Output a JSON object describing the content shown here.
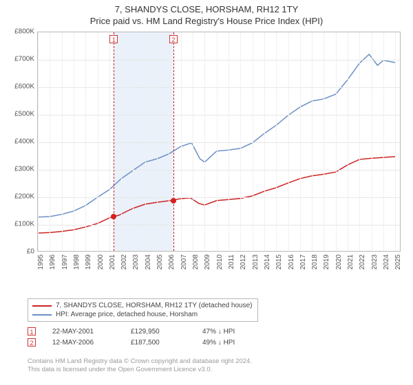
{
  "title_line1": "7, SHANDYS CLOSE, HORSHAM, RH12 1TY",
  "title_line2": "Price paid vs. HM Land Registry's House Price Index (HPI)",
  "chart": {
    "type": "line",
    "background_color": "#ffffff",
    "grid_color": "#e6e6e6",
    "axis_color": "#b8b8b8",
    "shade_color": "#eaf1fa",
    "x_label_fontsize": 10,
    "y_label_fontsize": 10,
    "ylim": [
      0,
      800000
    ],
    "ytick_step": 100000,
    "y_ticks": [
      "£0",
      "£100K",
      "£200K",
      "£300K",
      "£400K",
      "£500K",
      "£600K",
      "£700K",
      "£800K"
    ],
    "xlim": [
      1995,
      2025.5
    ],
    "x_ticks": [
      1995,
      1996,
      1997,
      1998,
      1999,
      2000,
      2001,
      2002,
      2003,
      2004,
      2005,
      2006,
      2007,
      2008,
      2009,
      2010,
      2011,
      2012,
      2013,
      2014,
      2015,
      2016,
      2017,
      2018,
      2019,
      2020,
      2021,
      2022,
      2023,
      2024,
      2025
    ],
    "series": [
      {
        "name": "7, SHANDYS CLOSE, HORSHAM, RH12 1TY (detached house)",
        "color": "#cc2222",
        "line_width": 1.5,
        "data": [
          [
            1995,
            70000
          ],
          [
            1996,
            72000
          ],
          [
            1997,
            76000
          ],
          [
            1998,
            82000
          ],
          [
            1999,
            92000
          ],
          [
            2000,
            105000
          ],
          [
            2001,
            125000
          ],
          [
            2001.8,
            135000
          ],
          [
            2002.5,
            150000
          ],
          [
            2003,
            160000
          ],
          [
            2004,
            175000
          ],
          [
            2005,
            182000
          ],
          [
            2006,
            187500
          ],
          [
            2007,
            195000
          ],
          [
            2007.8,
            198000
          ],
          [
            2008.5,
            178000
          ],
          [
            2009,
            172000
          ],
          [
            2010,
            188000
          ],
          [
            2011,
            192000
          ],
          [
            2012,
            196000
          ],
          [
            2013,
            205000
          ],
          [
            2014,
            222000
          ],
          [
            2015,
            235000
          ],
          [
            2016,
            252000
          ],
          [
            2017,
            268000
          ],
          [
            2018,
            278000
          ],
          [
            2019,
            284000
          ],
          [
            2020,
            292000
          ],
          [
            2021,
            318000
          ],
          [
            2022,
            338000
          ],
          [
            2023,
            342000
          ],
          [
            2024,
            345000
          ],
          [
            2025,
            348000
          ]
        ]
      },
      {
        "name": "HPI: Average price, detached house, Horsham",
        "color": "#6a8fc5",
        "line_width": 1.5,
        "data": [
          [
            1995,
            128000
          ],
          [
            1996,
            130000
          ],
          [
            1997,
            138000
          ],
          [
            1998,
            150000
          ],
          [
            1999,
            170000
          ],
          [
            2000,
            200000
          ],
          [
            2001,
            228000
          ],
          [
            2002,
            268000
          ],
          [
            2003,
            298000
          ],
          [
            2004,
            328000
          ],
          [
            2005,
            340000
          ],
          [
            2006,
            358000
          ],
          [
            2007,
            385000
          ],
          [
            2007.9,
            398000
          ],
          [
            2008.6,
            340000
          ],
          [
            2009,
            328000
          ],
          [
            2010,
            368000
          ],
          [
            2011,
            372000
          ],
          [
            2012,
            378000
          ],
          [
            2013,
            398000
          ],
          [
            2014,
            432000
          ],
          [
            2015,
            462000
          ],
          [
            2016,
            498000
          ],
          [
            2017,
            528000
          ],
          [
            2018,
            550000
          ],
          [
            2019,
            558000
          ],
          [
            2020,
            575000
          ],
          [
            2021,
            628000
          ],
          [
            2022,
            688000
          ],
          [
            2022.8,
            720000
          ],
          [
            2023.5,
            680000
          ],
          [
            2024,
            698000
          ],
          [
            2025,
            690000
          ]
        ]
      }
    ],
    "shade_ranges": [
      {
        "from": 2001.38,
        "to": 2006.37
      }
    ],
    "sale_markers": [
      {
        "idx": "1",
        "x": 2001.38,
        "y": 129950,
        "dash_color": "#cc2222"
      },
      {
        "idx": "2",
        "x": 2006.37,
        "y": 187500,
        "dash_color": "#cc2222"
      }
    ]
  },
  "legend": {
    "items": [
      {
        "label": "7, SHANDYS CLOSE, HORSHAM, RH12 1TY (detached house)",
        "color": "#cc2222"
      },
      {
        "label": "HPI: Average price, detached house, Horsham",
        "color": "#6a8fc5"
      }
    ]
  },
  "sales": [
    {
      "idx": "1",
      "date": "22-MAY-2001",
      "price": "£129,950",
      "diff": "47% ↓ HPI"
    },
    {
      "idx": "2",
      "date": "12-MAY-2006",
      "price": "£187,500",
      "diff": "49% ↓ HPI"
    }
  ],
  "footnote_line1": "Contains HM Land Registry data © Crown copyright and database right 2024.",
  "footnote_line2": "This data is licensed under the Open Government Licence v3.0."
}
